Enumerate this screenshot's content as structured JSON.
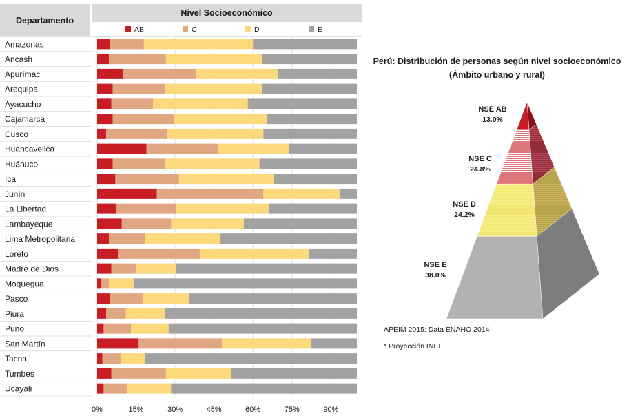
{
  "chart_data": [
    {
      "type": "bar",
      "stacked": true,
      "orientation": "horizontal",
      "column_header": "Departamento",
      "legend_title": "Nivel Socioeconómico",
      "legend_position": "top",
      "categories": [
        "Amazonas",
        "Ancash",
        "Apurímac",
        "Arequipa",
        "Ayacucho",
        "Cajamarca",
        "Cusco",
        "Huancavelica",
        "Huánuco",
        "Ica",
        "Junín",
        "La Libertad",
        "Lambayeque",
        "Lima Metropolitana",
        "Loreto",
        "Madre de Dios",
        "Moquegua",
        "Pasco",
        "Piura",
        "Puno",
        "San Martín",
        "Tacna",
        "Tumbes",
        "Ucayali"
      ],
      "series": [
        {
          "name": "AB",
          "color": "#c81d25",
          "values": [
            5,
            4.5,
            10,
            6,
            5.5,
            6,
            3.5,
            19,
            6,
            7,
            23,
            7.5,
            9.5,
            4.5,
            8,
            5.5,
            1.5,
            5,
            3.5,
            2.5,
            16,
            2,
            5.5,
            2.5
          ]
        },
        {
          "name": "C",
          "color": "#e0a581",
          "values": [
            13,
            22,
            28,
            20,
            16,
            23.5,
            23.5,
            27.5,
            20,
            24.5,
            41,
            23,
            19,
            14,
            31.5,
            9.5,
            3,
            12.5,
            7.5,
            10.5,
            32,
            7,
            21,
            9
          ]
        },
        {
          "name": "D",
          "color": "#fcd97b",
          "values": [
            42,
            37,
            31.5,
            37.5,
            36.5,
            36,
            37,
            27.5,
            36.5,
            36.5,
            29.5,
            35.5,
            28,
            29,
            42,
            15.5,
            9.5,
            18,
            15,
            14.5,
            34.5,
            9.5,
            25,
            17
          ]
        },
        {
          "name": "E",
          "color": "#a2a2a2",
          "values": [
            40,
            36.5,
            30.5,
            36.5,
            42,
            34.5,
            36,
            26,
            37.5,
            32,
            6.5,
            34,
            43.5,
            52.5,
            18.5,
            69.5,
            86,
            64.5,
            74,
            72.5,
            17.5,
            81.5,
            48.5,
            71.5
          ]
        }
      ],
      "xlim": [
        0,
        100
      ],
      "xticks": [
        "0%",
        "15%",
        "30%",
        "45%",
        "60%",
        "75%",
        "90%"
      ],
      "xtick_values": [
        0,
        15,
        30,
        45,
        60,
        75,
        90
      ],
      "grid": true
    },
    {
      "type": "pyramid",
      "title": "Perú: Distribución de personas según nivel socioeconómico",
      "subtitle": "(Ámbito urbano y  rural)",
      "segments": [
        {
          "label": "NSE AB",
          "value": 13.0,
          "value_label": "13.0%",
          "color": "#c81d25"
        },
        {
          "label": "NSE C",
          "value": 24.8,
          "value_label": "24.8%",
          "color": "#c81d25"
        },
        {
          "label": "NSE D",
          "value": 24.2,
          "value_label": "24.2%",
          "color": "#f7ec79"
        },
        {
          "label": "NSE E",
          "value": 38.0,
          "value_label": "38.0%",
          "color": "#a4a4a4"
        }
      ]
    }
  ],
  "notes": [
    "APEIM 2015: Data ENAHO 2014",
    "* Proyección INEI"
  ]
}
